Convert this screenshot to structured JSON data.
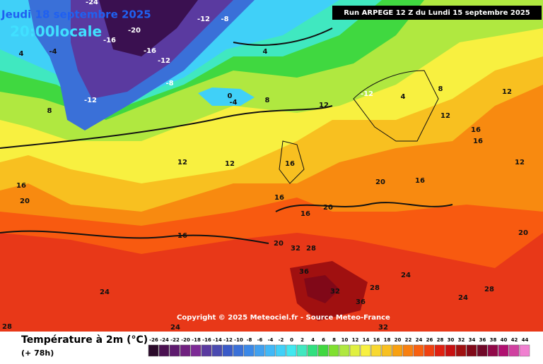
{
  "header": {
    "date": "Jeudi 18 septembre 2025",
    "time": "20:00locale",
    "run": "Run ARPEGE 12 Z du Lundi 15 septembre 2025"
  },
  "map": {
    "labels": [
      -24,
      -20,
      -16,
      -16,
      -12,
      -8,
      -12,
      -4,
      4,
      8,
      -4,
      0,
      -12,
      -8,
      12,
      12,
      12,
      16,
      16,
      16,
      16,
      20,
      24,
      28,
      24,
      32,
      36,
      28,
      32,
      36,
      32,
      24,
      28,
      20,
      16,
      12,
      12,
      8,
      4,
      -12,
      20,
      28,
      24,
      20,
      12,
      16,
      16,
      16,
      20,
      4,
      8
    ],
    "copyright": "Copyright © 2025 Meteociel.fr - Source Meteo-France"
  },
  "legend": {
    "title": "Température à 2m (°C)",
    "subtitle": "(+ 78h)",
    "ticks": [
      -26,
      -24,
      -22,
      -20,
      -18,
      -16,
      -14,
      -12,
      -10,
      -8,
      -6,
      -4,
      -2,
      0,
      2,
      4,
      6,
      8,
      10,
      12,
      14,
      16,
      18,
      20,
      22,
      24,
      26,
      28,
      30,
      32,
      34,
      36,
      38,
      40,
      42,
      44
    ],
    "colors": [
      "#2a0a2a",
      "#4a1050",
      "#5e1a6e",
      "#702080",
      "#7d2a96",
      "#5a3aa0",
      "#4a4ab0",
      "#3a5ac8",
      "#3a70d8",
      "#3a88e8",
      "#40a0f0",
      "#40b8f8",
      "#40d0f8",
      "#40e8f0",
      "#40e8c0",
      "#30e080",
      "#40d840",
      "#80e030",
      "#b0e840",
      "#e0f040",
      "#f8f040",
      "#f8d830",
      "#f8c020",
      "#f8a010",
      "#f88010",
      "#f86010",
      "#f04010",
      "#e02010",
      "#c81010",
      "#a01010",
      "#800818",
      "#700828",
      "#900848",
      "#b01070",
      "#d040a0",
      "#f080d0"
    ]
  }
}
